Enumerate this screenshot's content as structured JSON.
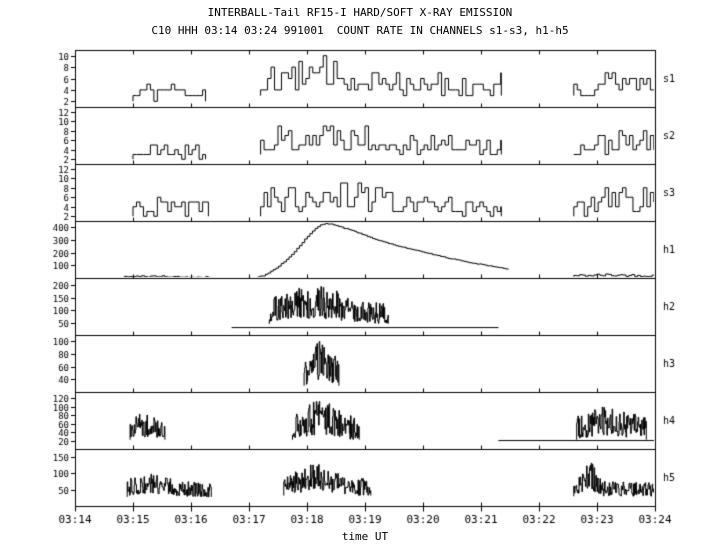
{
  "colors": {
    "line": "#000000",
    "background": "#ffffff"
  },
  "chart_data": {
    "type": "line",
    "title": "INTERBALL-Tail RF15-I HARD/SOFT X-RAY EMISSION",
    "subtitle": "C10 HHH 03:14 03:24 991001  COUNT RATE IN CHANNELS s1-s3, h1-h5",
    "xlabel": "time UT",
    "x_range": [
      14,
      24
    ],
    "x_ticks": [
      {
        "v": 14,
        "label": "03:14"
      },
      {
        "v": 15,
        "label": "03:15"
      },
      {
        "v": 16,
        "label": "03:16"
      },
      {
        "v": 17,
        "label": "03:17"
      },
      {
        "v": 18,
        "label": "03:18"
      },
      {
        "v": 19,
        "label": "03:19"
      },
      {
        "v": 20,
        "label": "03:20"
      },
      {
        "v": 21,
        "label": "03:21"
      },
      {
        "v": 22,
        "label": "03:22"
      },
      {
        "v": 23,
        "label": "03:23"
      },
      {
        "v": 24,
        "label": "03:24"
      }
    ],
    "panels": [
      {
        "channel": "s1",
        "ylim": [
          1,
          11
        ],
        "yticks": [
          2,
          4,
          6,
          8,
          10
        ],
        "bursts": [
          {
            "t0": 15.0,
            "t1": 16.25,
            "base": 2,
            "amp": 3,
            "peak": 1,
            "peak_t": 15.6,
            "width": 0.3,
            "dt": 0.06,
            "seed": 11,
            "round": true
          },
          {
            "t0": 17.2,
            "t1": 21.35,
            "base": 3,
            "amp": 4,
            "peak": 3,
            "peak_t": 18.4,
            "width": 1.0,
            "dt": 0.06,
            "seed": 12,
            "round": true
          },
          {
            "t0": 22.6,
            "t1": 24.0,
            "base": 3,
            "amp": 3,
            "peak": 2,
            "peak_t": 23.4,
            "width": 0.5,
            "dt": 0.06,
            "seed": 13,
            "round": true
          }
        ]
      },
      {
        "channel": "s2",
        "ylim": [
          1,
          13
        ],
        "yticks": [
          2,
          4,
          6,
          8,
          10,
          12
        ],
        "bursts": [
          {
            "t0": 15.0,
            "t1": 16.25,
            "base": 2,
            "amp": 3,
            "peak": 1,
            "peak_t": 15.6,
            "width": 0.3,
            "dt": 0.06,
            "seed": 21,
            "round": true
          },
          {
            "t0": 17.2,
            "t1": 21.35,
            "base": 3,
            "amp": 4,
            "peak": 4,
            "peak_t": 18.4,
            "width": 0.9,
            "dt": 0.06,
            "seed": 22,
            "round": true
          },
          {
            "t0": 22.6,
            "t1": 24.0,
            "base": 3,
            "amp": 3,
            "peak": 2,
            "peak_t": 23.5,
            "width": 0.5,
            "dt": 0.06,
            "seed": 23,
            "round": true
          }
        ]
      },
      {
        "channel": "s3",
        "ylim": [
          1,
          13
        ],
        "yticks": [
          2,
          4,
          6,
          8,
          10,
          12
        ],
        "bursts": [
          {
            "t0": 15.0,
            "t1": 16.3,
            "base": 2,
            "amp": 3,
            "peak": 1.5,
            "peak_t": 15.6,
            "width": 0.3,
            "dt": 0.06,
            "seed": 31,
            "round": true
          },
          {
            "t0": 17.2,
            "t1": 21.35,
            "base": 2,
            "amp": 4,
            "peak": 4,
            "peak_t": 18.3,
            "width": 1.0,
            "dt": 0.06,
            "seed": 32,
            "round": true
          },
          {
            "t0": 22.6,
            "t1": 24.0,
            "base": 2,
            "amp": 4,
            "peak": 3,
            "peak_t": 23.6,
            "width": 0.5,
            "dt": 0.06,
            "seed": 33,
            "round": true
          }
        ]
      },
      {
        "channel": "h1",
        "ylim": [
          0,
          450
        ],
        "yticks": [
          100,
          200,
          300,
          400
        ],
        "bursts": [
          {
            "t0": 14.85,
            "t1": 16.35,
            "base": 4,
            "amp": 8,
            "peak": 8,
            "peak_t": 15.3,
            "width": 0.3,
            "dt": 0.05,
            "seed": 41,
            "round": false
          },
          {
            "t0": 22.6,
            "t1": 24.0,
            "base": 10,
            "amp": 15,
            "peak": 10,
            "peak_t": 23.2,
            "width": 0.4,
            "dt": 0.05,
            "seed": 42,
            "round": false
          }
        ],
        "curves": [
          {
            "dt": 0.045,
            "noise": 6,
            "seed": 40,
            "points": [
              [
                17.15,
                8
              ],
              [
                17.25,
                20
              ],
              [
                17.35,
                45
              ],
              [
                17.45,
                75
              ],
              [
                17.55,
                110
              ],
              [
                17.65,
                150
              ],
              [
                17.75,
                195
              ],
              [
                17.85,
                245
              ],
              [
                17.95,
                300
              ],
              [
                18.05,
                350
              ],
              [
                18.15,
                395
              ],
              [
                18.25,
                425
              ],
              [
                18.35,
                430
              ],
              [
                18.45,
                420
              ],
              [
                18.55,
                405
              ],
              [
                18.7,
                385
              ],
              [
                18.85,
                360
              ],
              [
                19.0,
                335
              ],
              [
                19.15,
                310
              ],
              [
                19.3,
                288
              ],
              [
                19.5,
                262
              ],
              [
                19.7,
                238
              ],
              [
                19.9,
                215
              ],
              [
                20.1,
                192
              ],
              [
                20.3,
                170
              ],
              [
                20.5,
                150
              ],
              [
                20.7,
                132
              ],
              [
                20.9,
                115
              ],
              [
                21.1,
                98
              ],
              [
                21.3,
                82
              ],
              [
                21.5,
                68
              ]
            ]
          }
        ]
      },
      {
        "channel": "h2",
        "ylim": [
          0,
          230
        ],
        "yticks": [
          50,
          100,
          150,
          200
        ],
        "lines": [
          {
            "t0": 16.7,
            "t1": 21.3,
            "y": 30
          }
        ],
        "bursts": [
          {
            "t0": 17.35,
            "t1": 19.4,
            "base": 45,
            "amp": 80,
            "peak": 75,
            "peak_t": 18.1,
            "width": 0.5,
            "dt": 0.01,
            "seed": 51,
            "round": false
          }
        ]
      },
      {
        "channel": "h3",
        "ylim": [
          20,
          110
        ],
        "yticks": [
          40,
          60,
          80,
          100
        ],
        "bursts": [
          {
            "t0": 17.95,
            "t1": 18.55,
            "base": 30,
            "amp": 40,
            "peak": 35,
            "peak_t": 18.25,
            "width": 0.13,
            "dt": 0.01,
            "seed": 61,
            "round": false
          }
        ]
      },
      {
        "channel": "h4",
        "ylim": [
          0,
          135
        ],
        "yticks": [
          20,
          40,
          60,
          80,
          100,
          120
        ],
        "lines": [
          {
            "t0": 21.3,
            "t1": 24.0,
            "y": 20
          }
        ],
        "bursts": [
          {
            "t0": 14.95,
            "t1": 15.55,
            "base": 22,
            "amp": 45,
            "peak": 22,
            "peak_t": 15.2,
            "width": 0.15,
            "dt": 0.01,
            "seed": 71,
            "round": false
          },
          {
            "t0": 17.75,
            "t1": 18.9,
            "base": 22,
            "amp": 55,
            "peak": 40,
            "peak_t": 18.2,
            "width": 0.25,
            "dt": 0.01,
            "seed": 72,
            "round": false
          },
          {
            "t0": 22.65,
            "t1": 23.85,
            "base": 22,
            "amp": 50,
            "peak": 32,
            "peak_t": 23.2,
            "width": 0.3,
            "dt": 0.01,
            "seed": 73,
            "round": false
          }
        ]
      },
      {
        "channel": "h5",
        "ylim": [
          0,
          175
        ],
        "yticks": [
          50,
          100,
          150
        ],
        "bursts": [
          {
            "t0": 14.9,
            "t1": 16.35,
            "base": 28,
            "amp": 42,
            "peak": 28,
            "peak_t": 15.3,
            "width": 0.35,
            "dt": 0.01,
            "seed": 81,
            "round": false
          },
          {
            "t0": 17.6,
            "t1": 19.1,
            "base": 32,
            "amp": 55,
            "peak": 55,
            "peak_t": 18.15,
            "width": 0.25,
            "dt": 0.01,
            "seed": 82,
            "round": false
          },
          {
            "t0": 22.6,
            "t1": 24.0,
            "base": 30,
            "amp": 45,
            "peak": 70,
            "peak_t": 22.85,
            "width": 0.1,
            "dt": 0.01,
            "seed": 83,
            "round": false
          }
        ]
      }
    ]
  }
}
